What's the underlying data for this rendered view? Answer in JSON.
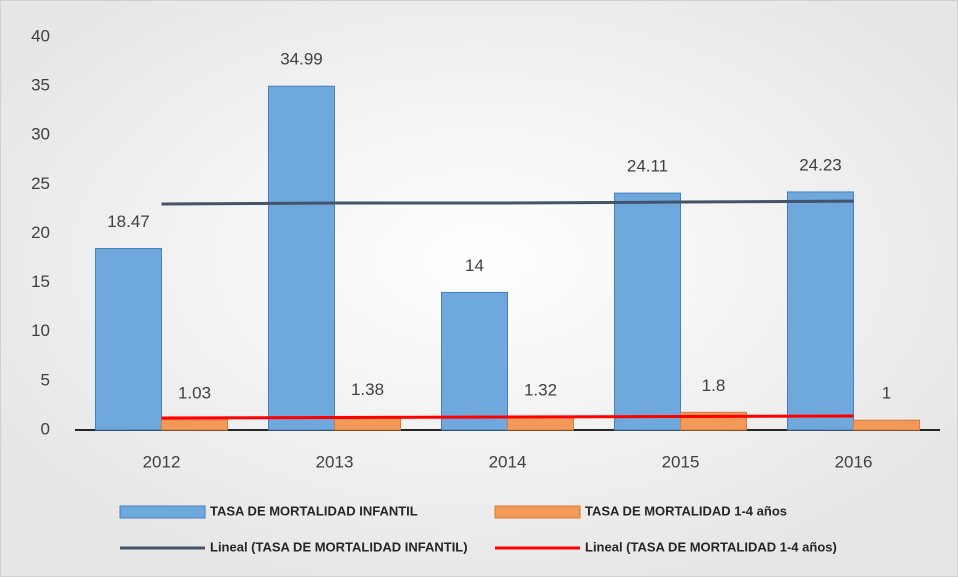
{
  "chart_data": {
    "type": "bar",
    "categories": [
      "2012",
      "2013",
      "2014",
      "2015",
      "2016"
    ],
    "series": [
      {
        "name": "TASA DE MORTALIDAD INFANTIL",
        "type": "bar",
        "color": "#6fa8dc",
        "values": [
          18.47,
          34.99,
          14,
          24.11,
          24.23
        ]
      },
      {
        "name": "TASA DE MORTALIDAD 1-4 años",
        "type": "bar",
        "color": "#f39a5a",
        "values": [
          1.03,
          1.38,
          1.32,
          1.8,
          1
        ]
      },
      {
        "name": "Lineal (TASA DE MORTALIDAD INFANTIL)",
        "type": "line",
        "color": "#44546a",
        "values": [
          23.0,
          23.1,
          23.1,
          23.2,
          23.3
        ]
      },
      {
        "name": "Lineal (TASA DE MORTALIDAD 1-4 años)",
        "type": "line",
        "color": "#ff0000",
        "values": [
          1.22,
          1.27,
          1.32,
          1.37,
          1.42
        ]
      }
    ],
    "ylim": [
      0,
      40
    ],
    "yticks": [
      0,
      5,
      10,
      15,
      20,
      25,
      30,
      35,
      40
    ],
    "grid": false,
    "legend": "bottom"
  }
}
